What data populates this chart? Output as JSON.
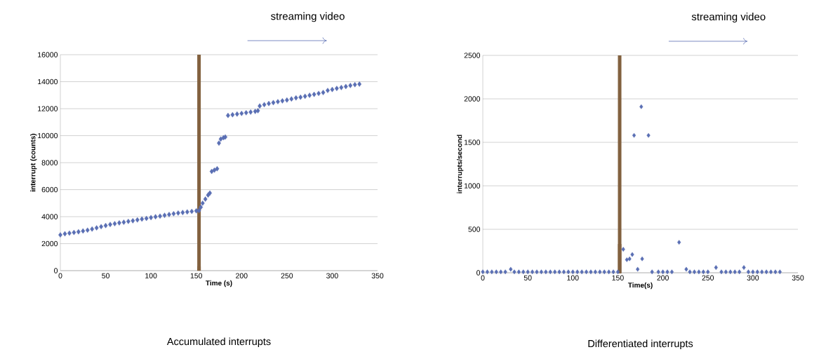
{
  "chart_data": [
    {
      "type": "scatter",
      "title": "Accumulated interrupts",
      "xlabel": "Time (s)",
      "ylabel": "interrupt (counts)",
      "annotations": [
        "streaming video"
      ],
      "x": [
        0,
        5,
        10,
        15,
        20,
        25,
        30,
        35,
        40,
        45,
        50,
        55,
        60,
        65,
        70,
        75,
        80,
        85,
        90,
        95,
        100,
        105,
        110,
        115,
        120,
        125,
        130,
        135,
        140,
        145,
        150,
        153,
        155,
        157,
        160,
        163,
        165,
        167,
        170,
        173,
        175,
        177,
        180,
        182,
        185,
        190,
        195,
        200,
        205,
        210,
        215,
        218,
        220,
        225,
        230,
        235,
        240,
        245,
        250,
        255,
        260,
        265,
        270,
        275,
        280,
        285,
        290,
        295,
        300,
        305,
        310,
        315,
        320,
        325,
        330
      ],
      "series": [
        {
          "color": "#5a6fb4",
          "values": [
            2650,
            2730,
            2780,
            2830,
            2880,
            2940,
            3000,
            3080,
            3170,
            3260,
            3340,
            3420,
            3480,
            3540,
            3590,
            3650,
            3700,
            3760,
            3820,
            3870,
            3930,
            3990,
            4040,
            4100,
            4160,
            4220,
            4270,
            4310,
            4350,
            4390,
            4430,
            4450,
            4700,
            5000,
            5300,
            5600,
            5750,
            7350,
            7450,
            7550,
            9450,
            9750,
            9850,
            9900,
            11500,
            11550,
            11600,
            11650,
            11700,
            11750,
            11800,
            11850,
            12200,
            12300,
            12380,
            12450,
            12520,
            12580,
            12640,
            12720,
            12800,
            12850,
            12920,
            12990,
            13060,
            13130,
            13200,
            13350,
            13420,
            13500,
            13570,
            13640,
            13720,
            13780,
            13820
          ]
        }
      ],
      "xlim": [
        0,
        350
      ],
      "xticks": [
        0,
        50,
        100,
        150,
        200,
        250,
        300,
        350
      ],
      "ylim": [
        0,
        16000
      ],
      "yticks": [
        0,
        2000,
        4000,
        6000,
        8000,
        10000,
        12000,
        14000,
        16000
      ],
      "ref_lines": [
        {
          "axis": "x",
          "value": 153,
          "color": "#82613f"
        }
      ],
      "grid": "y",
      "marker": "diamond"
    },
    {
      "type": "scatter",
      "title": "Differentiated interrupts",
      "xlabel": "Time(s)",
      "ylabel": "interrupts/second",
      "annotations": [
        "streaming video"
      ],
      "x": [
        0,
        5,
        10,
        15,
        20,
        25,
        31,
        35,
        40,
        45,
        50,
        55,
        60,
        65,
        70,
        75,
        80,
        85,
        90,
        95,
        100,
        105,
        110,
        115,
        120,
        125,
        130,
        135,
        140,
        145,
        150,
        156,
        160,
        163,
        166,
        168,
        172,
        176,
        177,
        184,
        188,
        195,
        200,
        205,
        210,
        218,
        226,
        230,
        235,
        240,
        245,
        250,
        259,
        265,
        270,
        275,
        280,
        285,
        290,
        295,
        300,
        305,
        310,
        315,
        320,
        325,
        330
      ],
      "series": [
        {
          "color": "#5a6fb4",
          "values": [
            10,
            10,
            10,
            10,
            10,
            10,
            40,
            10,
            10,
            10,
            10,
            10,
            10,
            10,
            10,
            10,
            10,
            10,
            10,
            10,
            10,
            10,
            10,
            10,
            10,
            10,
            10,
            10,
            10,
            10,
            10,
            270,
            150,
            160,
            210,
            1580,
            40,
            1910,
            160,
            1580,
            10,
            10,
            10,
            10,
            10,
            350,
            40,
            10,
            10,
            10,
            10,
            10,
            60,
            10,
            10,
            10,
            10,
            10,
            60,
            10,
            10,
            10,
            10,
            10,
            10,
            10,
            10
          ]
        }
      ],
      "xlim": [
        0,
        350
      ],
      "xticks": [
        0,
        50,
        100,
        150,
        200,
        250,
        300,
        350
      ],
      "ylim": [
        0,
        2500
      ],
      "yticks": [
        0,
        500,
        1000,
        1500,
        2000,
        2500
      ],
      "ref_lines": [
        {
          "axis": "x",
          "value": 152,
          "color": "#82613f"
        }
      ],
      "grid": "y",
      "marker": "diamond"
    }
  ]
}
